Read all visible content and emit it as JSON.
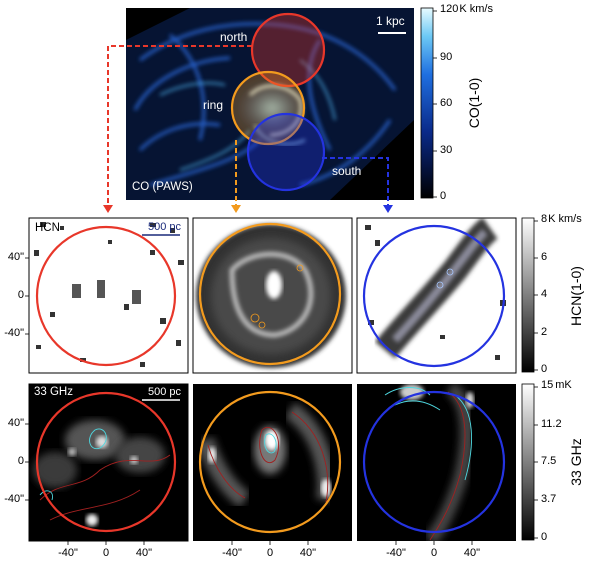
{
  "co_panel": {
    "regions": {
      "north": "north",
      "ring": "ring",
      "south": "south"
    },
    "scalebar": "1 kpc",
    "label": "CO (PAWS)",
    "colorbar": {
      "unit": "K km/s",
      "ticks": [
        "120",
        "90",
        "60",
        "30",
        "0"
      ],
      "title": "CO(1-0)"
    },
    "colors": {
      "north": "#e8372a",
      "ring": "#f39b1e",
      "south": "#2433e0"
    }
  },
  "hcn_row": {
    "label": "HCN",
    "scalebar": "500 pc",
    "y_ticks": [
      "40\"",
      "0",
      "-40\""
    ],
    "colorbar": {
      "unit": "K km/s",
      "ticks": [
        "8",
        "6",
        "4",
        "2",
        "0"
      ],
      "title": "HCN(1-0)"
    }
  },
  "ghz_row": {
    "label": "33 GHz",
    "scalebar": "500 pc",
    "y_ticks": [
      "40\"",
      "0",
      "-40\""
    ],
    "x_ticks": [
      "-40\"",
      "0",
      "40\""
    ],
    "colorbar": {
      "unit": "mK",
      "ticks": [
        "15",
        "11.2",
        "7.5",
        "3.7",
        "0"
      ],
      "title": "33 GHz"
    }
  }
}
